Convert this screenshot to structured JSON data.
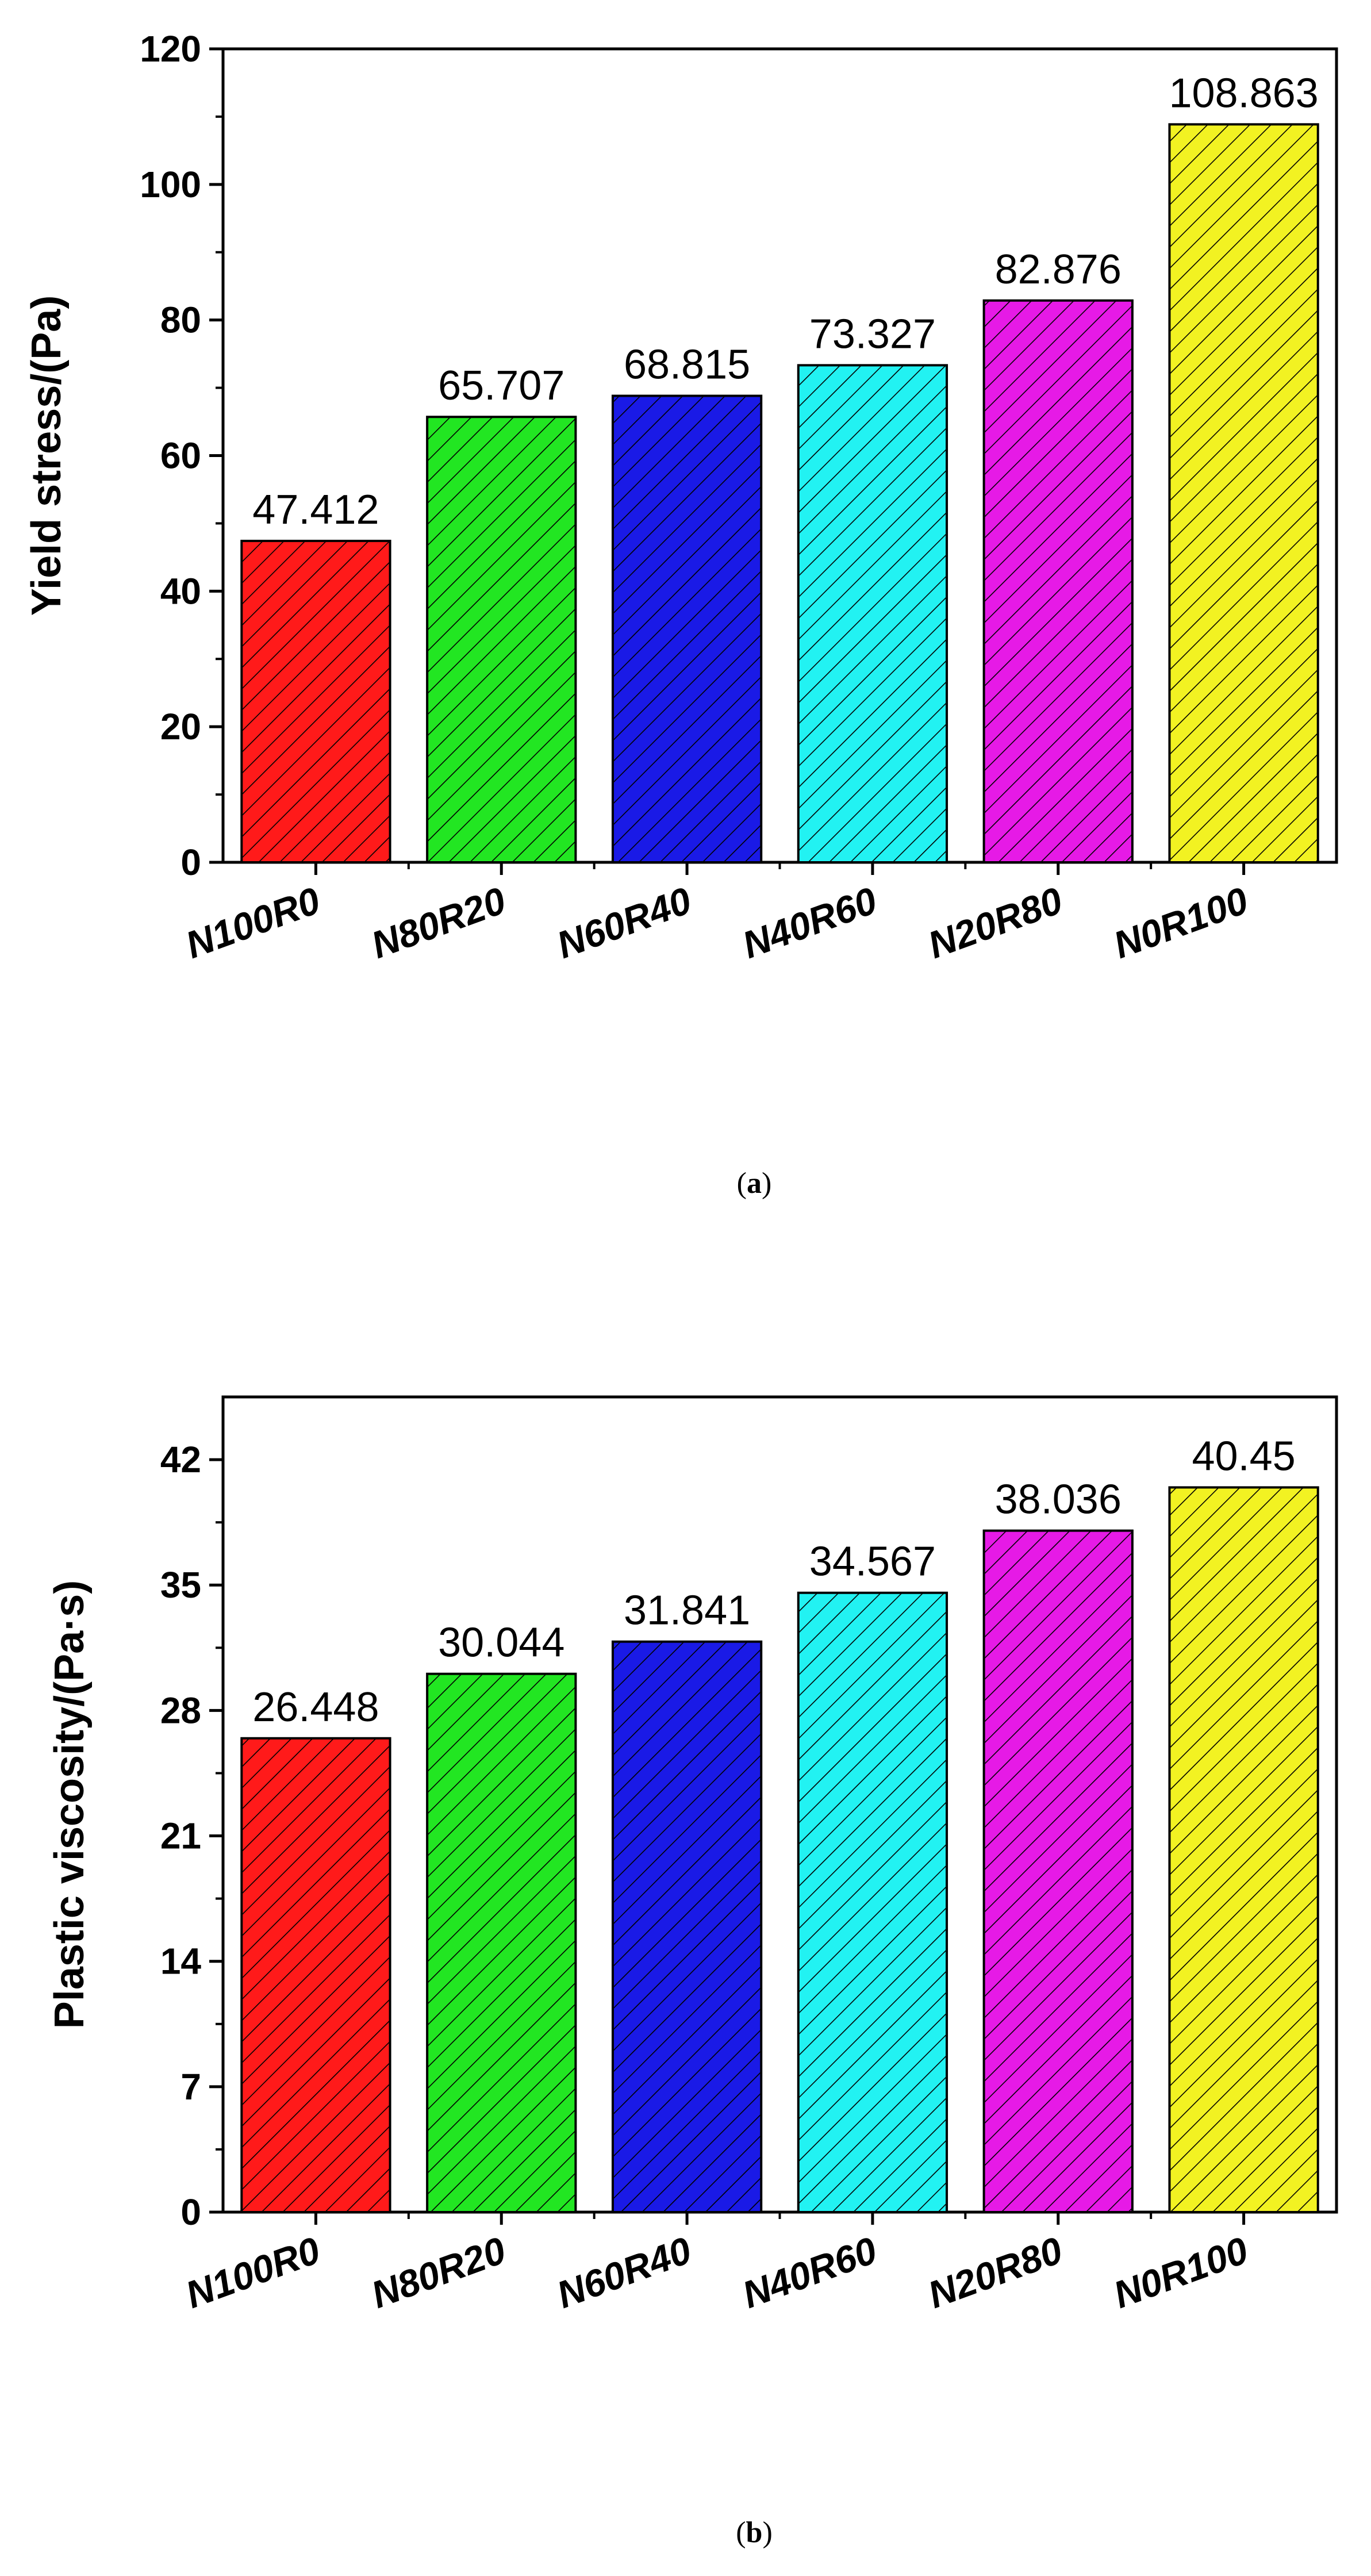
{
  "chart_data": [
    {
      "type": "bar",
      "panel": "a",
      "categories": [
        "N100R0",
        "N80R20",
        "N60R40",
        "N40R60",
        "N20R80",
        "N0R100"
      ],
      "values": [
        47.412,
        65.707,
        68.815,
        73.327,
        82.876,
        108.863
      ],
      "data_labels": [
        "47.412",
        "65.707",
        "68.815",
        "73.327",
        "82.876",
        "108.863"
      ],
      "colors": [
        "#ff1a1a",
        "#22e622",
        "#1a1ae6",
        "#22f2f2",
        "#e61ae6",
        "#f2f222"
      ],
      "hatch": "diagonal",
      "title": "",
      "xlabel": "",
      "ylabel": "Yield stress/(Pa)",
      "ylim": [
        0,
        120
      ],
      "yticks": [
        0,
        20,
        40,
        60,
        80,
        100,
        120
      ],
      "grid": false,
      "caption": {
        "open": "(",
        "letter": "a",
        "close": ")"
      }
    },
    {
      "type": "bar",
      "panel": "b",
      "categories": [
        "N100R0",
        "N80R20",
        "N60R40",
        "N40R60",
        "N20R80",
        "N0R100"
      ],
      "values": [
        26.448,
        30.044,
        31.841,
        34.567,
        38.036,
        40.45
      ],
      "data_labels": [
        "26.448",
        "30.044",
        "31.841",
        "34.567",
        "38.036",
        "40.45"
      ],
      "colors": [
        "#ff1a1a",
        "#22e622",
        "#1a1ae6",
        "#22f2f2",
        "#e61ae6",
        "#f2f222"
      ],
      "hatch": "diagonal",
      "title": "",
      "xlabel": "",
      "ylabel": "Plastic viscosity/(Pa·s)",
      "ylim": [
        0,
        45.5
      ],
      "yticks": [
        0,
        7,
        14,
        21,
        28,
        35,
        42
      ],
      "grid": false,
      "caption": {
        "open": "(",
        "letter": "b",
        "close": ")"
      }
    }
  ]
}
